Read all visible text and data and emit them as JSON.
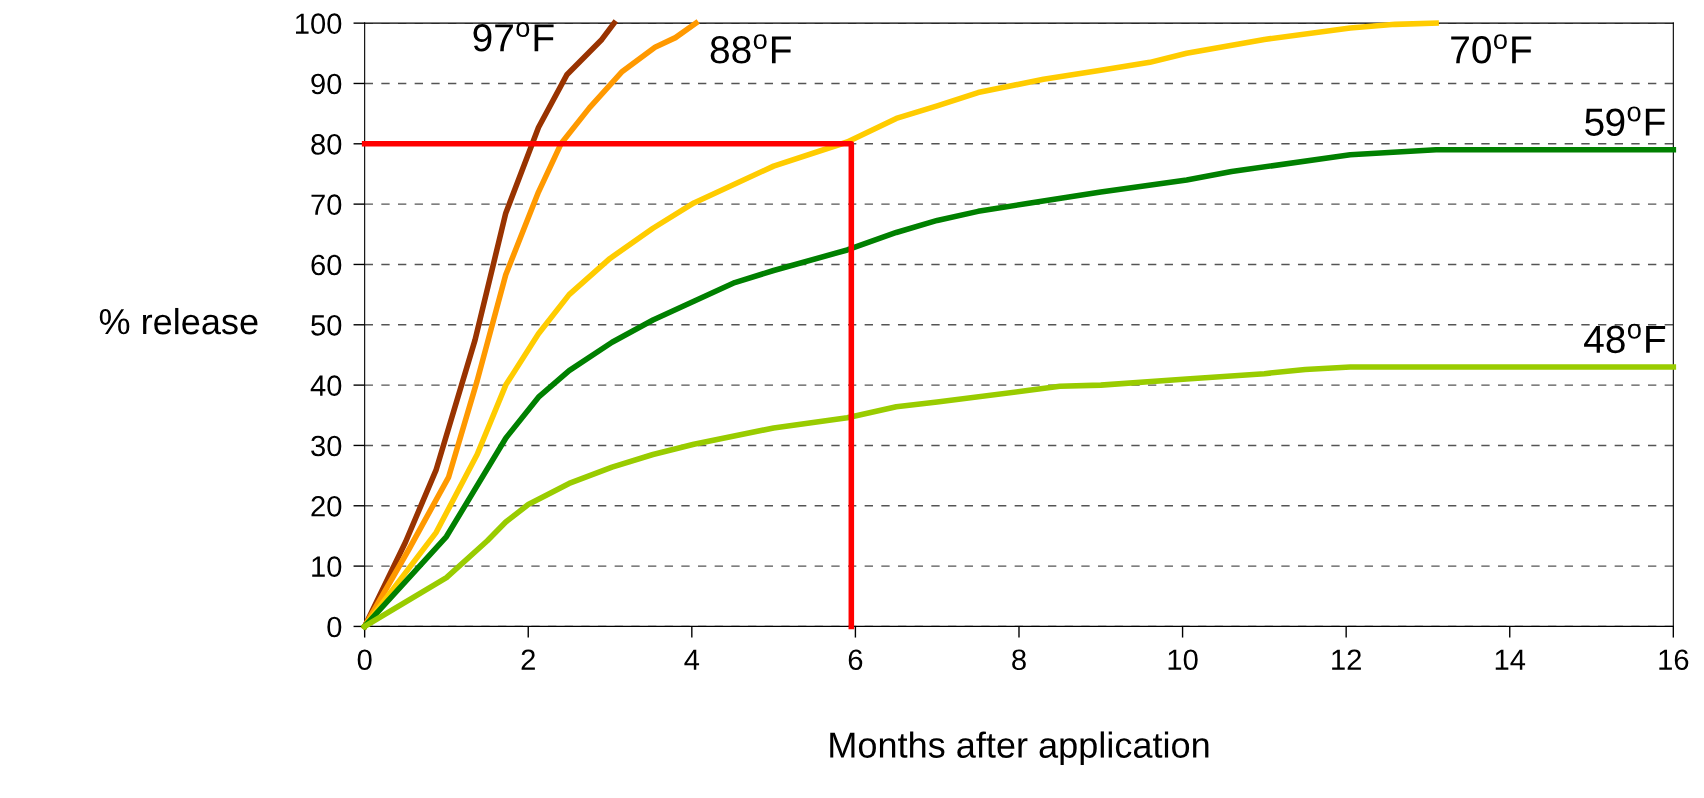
{
  "chart_data": {
    "type": "line",
    "xlabel": "Months after application",
    "ylabel": "% release",
    "xlim": [
      0,
      16
    ],
    "xticks": [
      0,
      2,
      4,
      6,
      8,
      10,
      12,
      14,
      16
    ],
    "ylim": [
      0,
      100
    ],
    "yticks": [
      0,
      10,
      20,
      30,
      40,
      50,
      60,
      70,
      80,
      90,
      100
    ],
    "grid": "y",
    "line_style": "solid",
    "marker": "none",
    "series": [
      {
        "name": "97$^{o}$F",
        "color": "#993300",
        "x": [
          0,
          0.5,
          0.875,
          1.35,
          1.725,
          2.125,
          2.475,
          2.9,
          3.05
        ],
        "values": [
          0,
          14,
          26,
          47.5,
          68.5,
          82.7,
          91.5,
          97.3,
          100
        ]
      },
      {
        "name": "88$^{o}$F",
        "color": "#ff9900",
        "x": [
          0,
          0.55,
          1.025,
          1.375,
          1.725,
          2.125,
          2.4,
          2.75,
          3.15,
          3.55,
          3.8,
          4.05
        ],
        "values": [
          0,
          13,
          24.7,
          40.7,
          58.3,
          72,
          80,
          86,
          92,
          96,
          97.6,
          100
        ]
      },
      {
        "name": "70$^{o}$F",
        "color": "#ffcc00",
        "x": [
          0,
          0.875,
          1.375,
          1.725,
          2.125,
          2.5,
          3,
          3.525,
          4.025,
          5,
          5.9,
          6.5,
          7,
          7.5,
          8.3,
          9,
          9.6,
          10.05,
          11,
          12.05,
          12.6,
          13.1
        ],
        "values": [
          0,
          15.6,
          28.5,
          40,
          48.5,
          55,
          61,
          66,
          70.2,
          76.3,
          80.3,
          84.2,
          86.3,
          88.5,
          90.7,
          92.2,
          93.5,
          95,
          97.3,
          99.2,
          99.8,
          100
        ]
      },
      {
        "name": "59$^{o}$F",
        "color": "#008000",
        "x": [
          0,
          1,
          1.725,
          2.125,
          2.5,
          3.025,
          3.525,
          4.025,
          4.525,
          5,
          5.9,
          6.5,
          7,
          7.5,
          8.1,
          9,
          10.05,
          10.6,
          12.05,
          13.1,
          16
        ],
        "values": [
          0,
          14.9,
          31.2,
          38,
          42.4,
          47.1,
          50.8,
          53.9,
          57,
          59,
          62.4,
          65.3,
          67.3,
          68.8,
          70.1,
          72,
          74,
          75.4,
          78.2,
          79,
          79
        ]
      },
      {
        "name": "48$^{o}$F",
        "color": "#99cc00",
        "x": [
          0,
          1,
          1.5,
          1.725,
          2,
          2.5,
          3.025,
          3.525,
          4.025,
          5,
          5.9,
          6.5,
          7,
          8.1,
          8.5,
          9,
          10.05,
          11,
          11.5,
          12.05,
          16
        ],
        "values": [
          0,
          8.1,
          14.2,
          17.3,
          20.2,
          23.7,
          26.4,
          28.5,
          30.2,
          32.9,
          34.6,
          36.4,
          37.2,
          39.1,
          39.8,
          40,
          41,
          41.9,
          42.6,
          43,
          43
        ]
      },
      {
        "color": "#ff0000",
        "x": [
          0,
          5.95,
          5.95
        ],
        "values": [
          80,
          80,
          0
        ]
      }
    ]
  }
}
